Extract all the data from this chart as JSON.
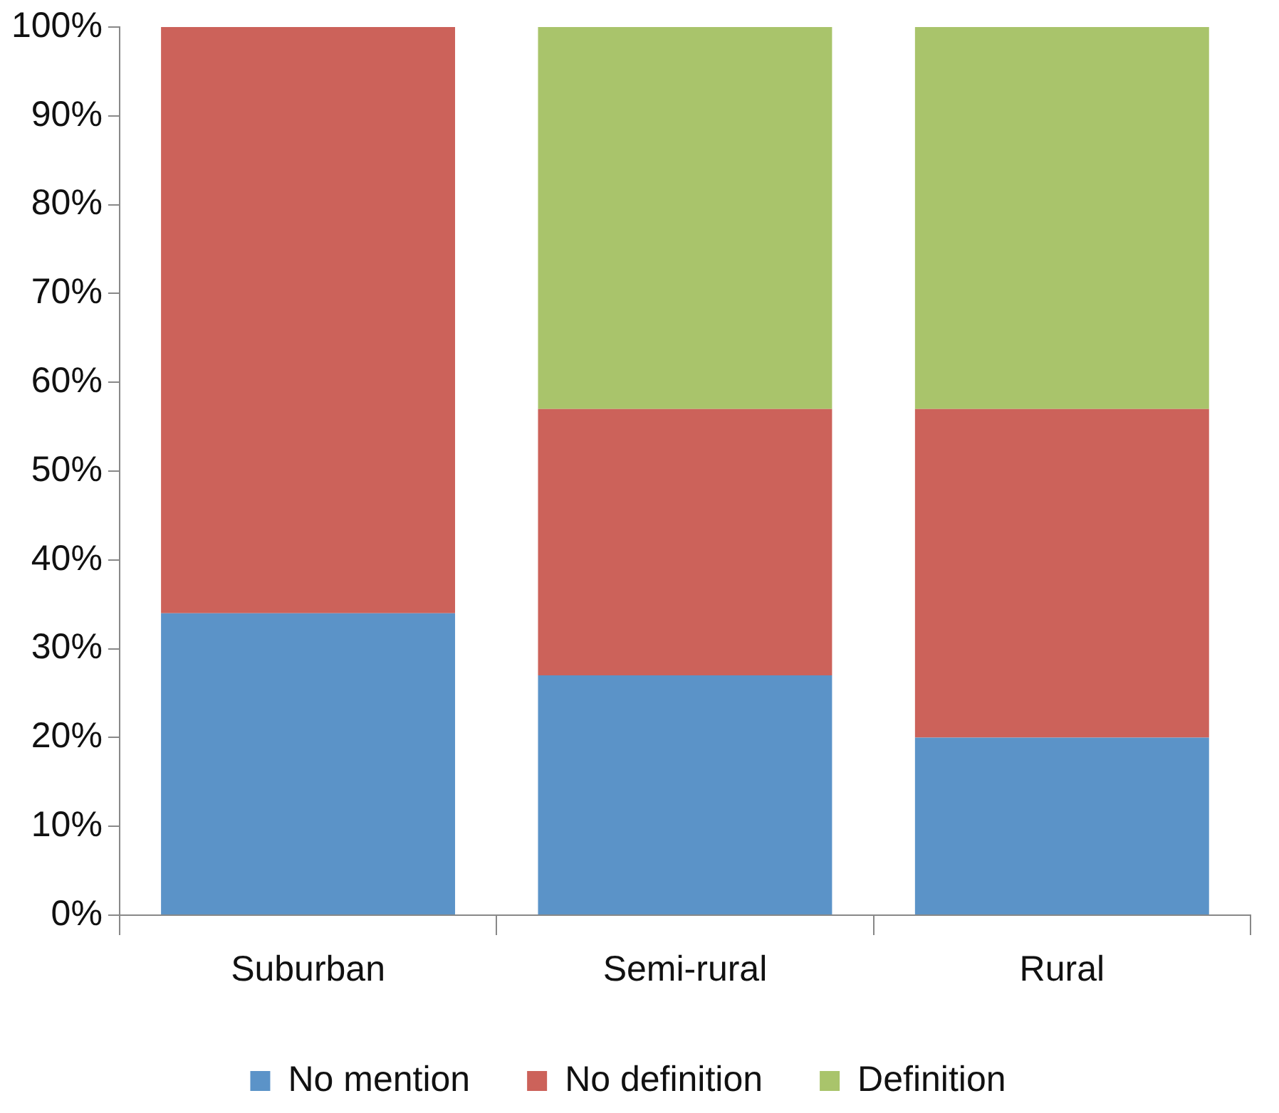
{
  "chart_data": {
    "type": "bar",
    "stacked": true,
    "categories": [
      "Suburban",
      "Semi-rural",
      "Rural"
    ],
    "series": [
      {
        "name": "No mention",
        "color": "#5b93c8",
        "values": [
          34,
          27,
          20
        ]
      },
      {
        "name": "No definition",
        "color": "#cc625a",
        "values": [
          66,
          30,
          37
        ]
      },
      {
        "name": "Definition",
        "color": "#a9c46b",
        "values": [
          0,
          43,
          43
        ]
      }
    ],
    "ylim": [
      0,
      100
    ],
    "yticks": [
      {
        "value": 0,
        "label": "0%"
      },
      {
        "value": 10,
        "label": "10%"
      },
      {
        "value": 20,
        "label": "20%"
      },
      {
        "value": 30,
        "label": "30%"
      },
      {
        "value": 40,
        "label": "40%"
      },
      {
        "value": 50,
        "label": "50%"
      },
      {
        "value": 60,
        "label": "60%"
      },
      {
        "value": 70,
        "label": "70%"
      },
      {
        "value": 80,
        "label": "80%"
      },
      {
        "value": 90,
        "label": "90%"
      },
      {
        "value": 100,
        "label": "100%"
      }
    ],
    "grid": false,
    "legend": "bottom"
  }
}
